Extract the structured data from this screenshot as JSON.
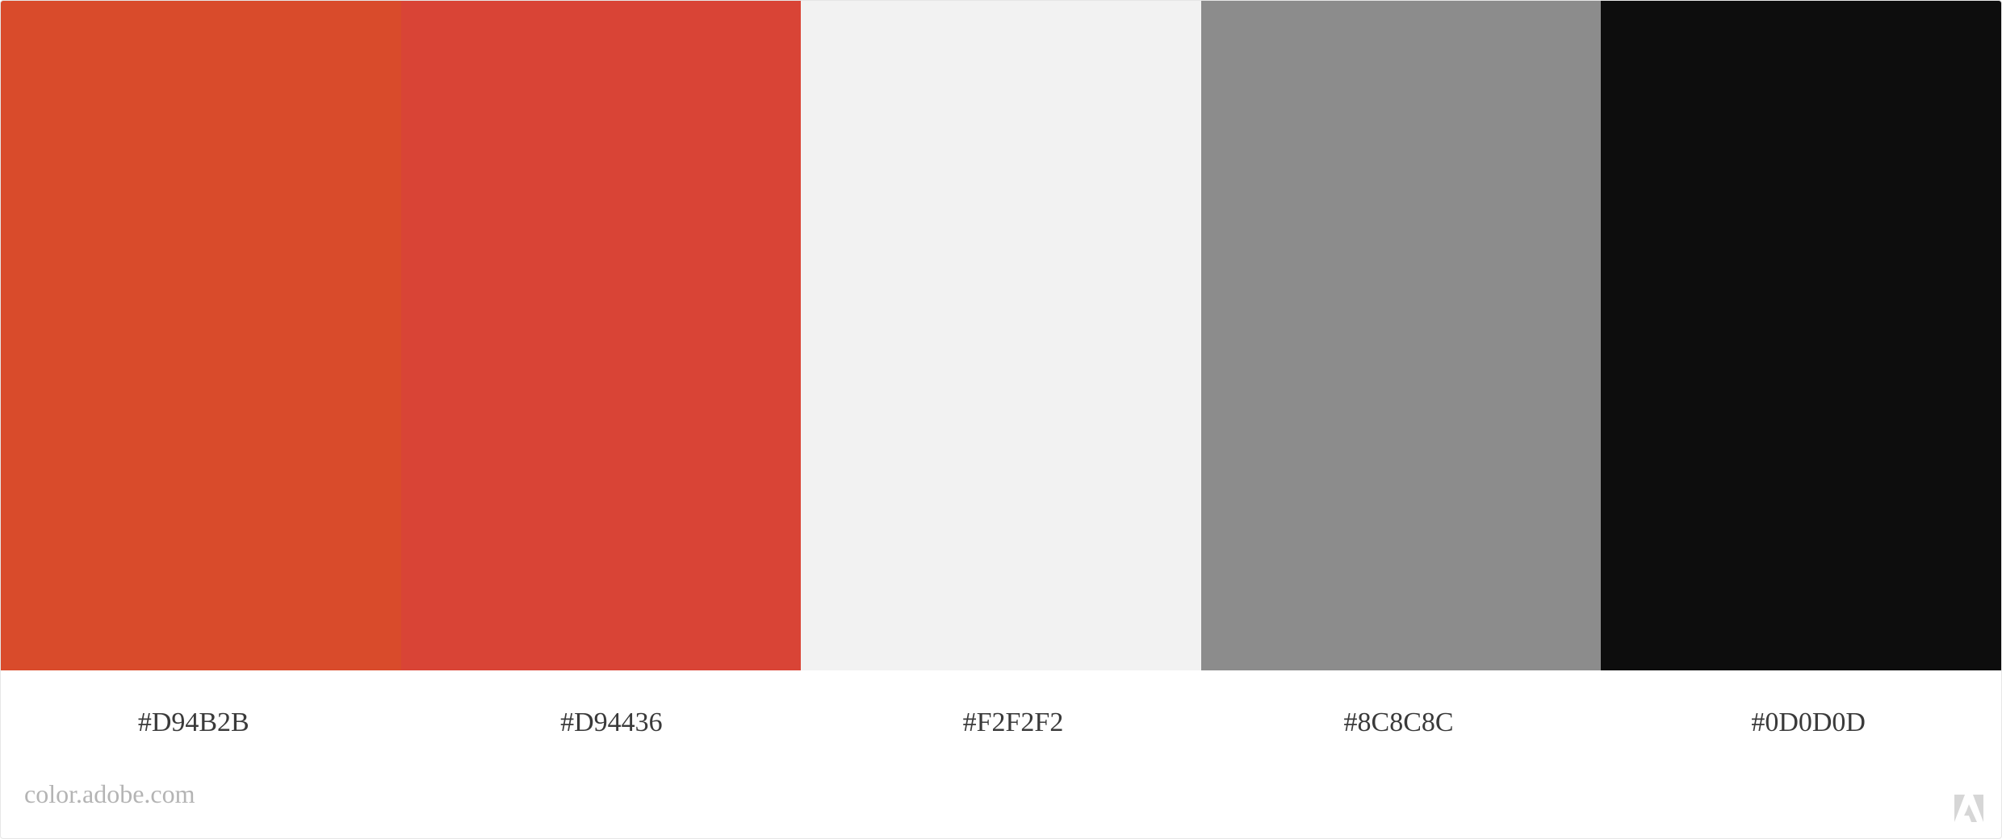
{
  "palette": {
    "swatches": [
      {
        "hex": "#D94B2B",
        "color": "#D94B2B"
      },
      {
        "hex": "#D94436",
        "color": "#D94436"
      },
      {
        "hex": "#F2F2F2",
        "color": "#F2F2F2"
      },
      {
        "hex": "#8C8C8C",
        "color": "#8C8C8C"
      },
      {
        "hex": "#0D0D0D",
        "color": "#0D0D0D"
      }
    ]
  },
  "footer": {
    "source": "color.adobe.com",
    "logo_icon": "adobe-logo-icon"
  }
}
